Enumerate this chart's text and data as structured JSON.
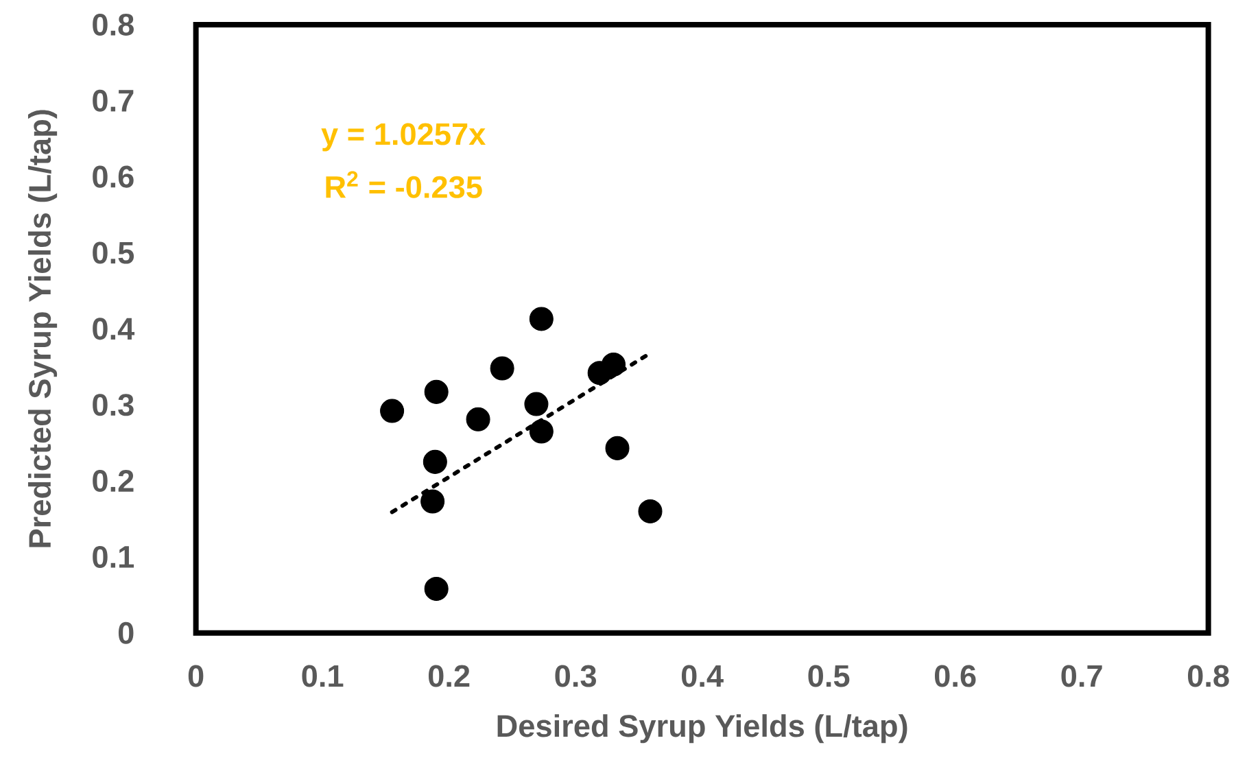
{
  "chart_data": {
    "type": "scatter",
    "xlabel": "Desired Syrup Yields (L/tap)",
    "ylabel": "Predicted Syrup Yields (L/tap)",
    "annotations": [
      "y = 1.0257x",
      "R$^{2}$ = -0.235"
    ],
    "xlim": [
      0,
      0.8
    ],
    "ylim": [
      0,
      0.8
    ],
    "xticks": [
      0,
      0.1,
      0.2,
      0.3,
      0.4,
      0.5,
      0.6,
      0.7,
      0.8
    ],
    "yticks": [
      0,
      0.1,
      0.2,
      0.3,
      0.4,
      0.5,
      0.6,
      0.7,
      0.8
    ],
    "grid": false,
    "series": [
      {
        "type": "scatter",
        "marker": "circle",
        "color": "#000000",
        "x": [
          0.155,
          0.19,
          0.189,
          0.187,
          0.19,
          0.223,
          0.242,
          0.273,
          0.269,
          0.273,
          0.319,
          0.33,
          0.333,
          0.359
        ],
        "values": [
          0.292,
          0.317,
          0.225,
          0.173,
          0.058,
          0.281,
          0.348,
          0.413,
          0.301,
          0.265,
          0.342,
          0.353,
          0.243,
          0.16
        ]
      },
      {
        "type": "line",
        "color": "#000000",
        "line_style": "dotted",
        "marker": "none",
        "x": [
          0.155,
          0.36
        ],
        "values": [
          0.159,
          0.369
        ]
      }
    ]
  }
}
